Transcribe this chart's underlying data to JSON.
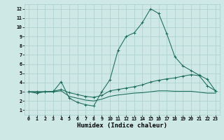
{
  "x": [
    0,
    1,
    2,
    3,
    4,
    5,
    6,
    7,
    8,
    9,
    10,
    11,
    12,
    13,
    14,
    15,
    16,
    17,
    18,
    19,
    20,
    21,
    22,
    23
  ],
  "line1": [
    3.0,
    2.85,
    3.0,
    3.0,
    4.1,
    2.3,
    1.85,
    1.6,
    1.45,
    3.0,
    4.3,
    7.5,
    9.0,
    9.4,
    10.5,
    12.0,
    11.5,
    9.3,
    6.8,
    5.8,
    5.3,
    4.8,
    4.35,
    3.1
  ],
  "line2": [
    3.0,
    3.0,
    3.0,
    3.05,
    3.25,
    2.9,
    2.7,
    2.5,
    2.4,
    2.6,
    3.1,
    3.25,
    3.4,
    3.55,
    3.75,
    4.05,
    4.25,
    4.4,
    4.5,
    4.7,
    4.85,
    4.75,
    3.65,
    3.1
  ],
  "line3": [
    3.0,
    3.0,
    3.0,
    3.0,
    3.1,
    2.5,
    2.3,
    2.1,
    2.0,
    2.2,
    2.5,
    2.65,
    2.75,
    2.85,
    2.9,
    3.0,
    3.1,
    3.1,
    3.05,
    3.05,
    3.05,
    2.95,
    2.85,
    2.85
  ],
  "line_color": "#1a6b5a",
  "bg_color": "#cde8e5",
  "grid_color": "#aacfcc",
  "xlabel": "Humidex (Indice chaleur)",
  "ylim": [
    0.5,
    12.5
  ],
  "xlim": [
    -0.5,
    23.5
  ],
  "yticks": [
    1,
    2,
    3,
    4,
    5,
    6,
    7,
    8,
    9,
    10,
    11,
    12
  ],
  "xticks": [
    0,
    1,
    2,
    3,
    4,
    5,
    6,
    7,
    8,
    9,
    10,
    11,
    12,
    13,
    14,
    15,
    16,
    17,
    18,
    19,
    20,
    21,
    22,
    23
  ],
  "tick_fontsize": 4.8,
  "xlabel_fontsize": 6.5,
  "marker_size": 2.5,
  "line_width": 0.75
}
